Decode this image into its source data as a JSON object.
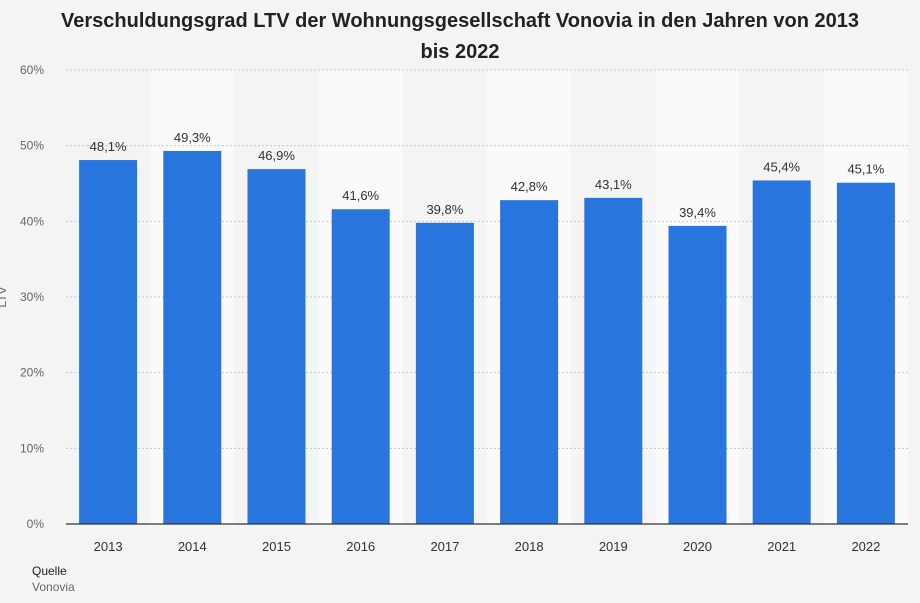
{
  "title_line1": "Verschuldungsgrad LTV der Wohnungsgesellschaft Vonovia in den Jahren von 2013",
  "title_line2": "bis 2022",
  "source_label": "Quelle",
  "source_value": "Vonovia",
  "colors": {
    "bar": "#2876dd",
    "background": "#f4f4f4",
    "band": "#fafafa",
    "grid": "#c8c8c8"
  },
  "chart_data": {
    "type": "bar",
    "categories": [
      "2013",
      "2014",
      "2015",
      "2016",
      "2017",
      "2018",
      "2019",
      "2020",
      "2021",
      "2022"
    ],
    "values": [
      48.1,
      49.3,
      46.9,
      41.6,
      39.8,
      42.8,
      43.1,
      39.4,
      45.4,
      45.1
    ],
    "value_labels": [
      "48,1%",
      "49,3%",
      "46,9%",
      "41,6%",
      "39,8%",
      "42,8%",
      "43,1%",
      "39,4%",
      "45,4%",
      "45,1%"
    ],
    "yticks": [
      0,
      10,
      20,
      30,
      40,
      50,
      60
    ],
    "ytick_labels": [
      "0%",
      "10%",
      "20%",
      "30%",
      "40%",
      "50%",
      "60%"
    ],
    "ylim": [
      0,
      60
    ],
    "ylabel": "LTV",
    "xlabel": "",
    "grid": true
  }
}
